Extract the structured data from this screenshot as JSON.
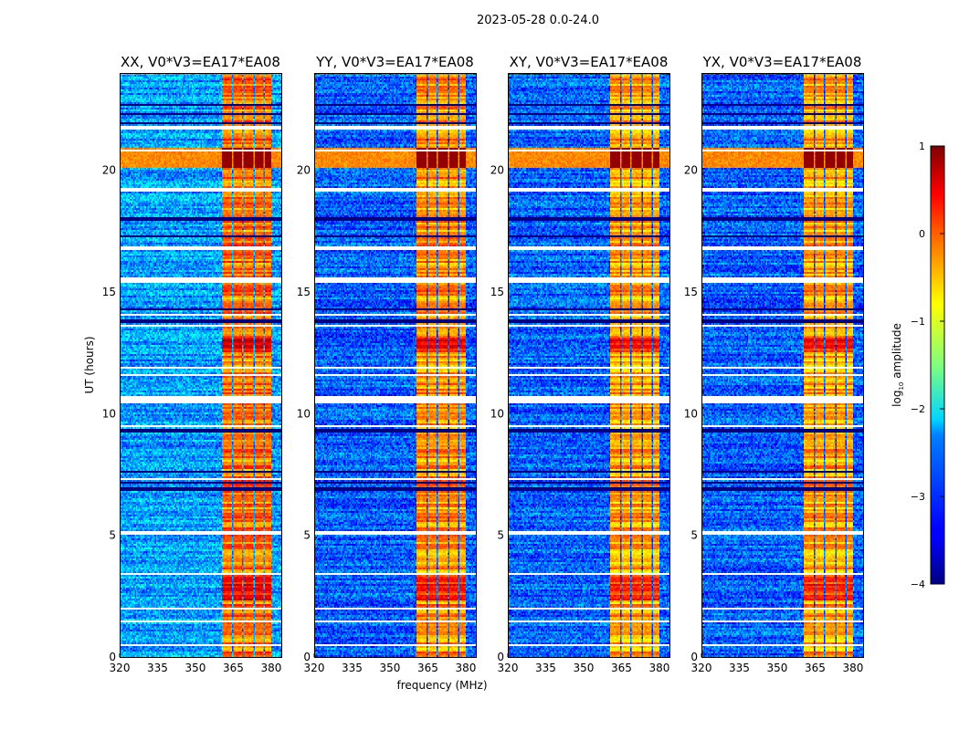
{
  "suptitle": "2023-05-28 0.0-24.0",
  "chart_data": {
    "type": "heatmap",
    "xlabel": "frequency (MHz)",
    "ylabel": "UT (hours)",
    "xlim": [
      320,
      384
    ],
    "ylim": [
      0,
      24
    ],
    "xticks": [
      320,
      335,
      350,
      365,
      380
    ],
    "yticks": [
      0,
      5,
      10,
      15,
      20
    ],
    "panels": [
      {
        "title": "XX, V0*V3=EA17*EA08",
        "base_level": -2.6,
        "rfi_gain": 0.25
      },
      {
        "title": "YY, V0*V3=EA17*EA08",
        "base_level": -2.9,
        "rfi_gain": 0.1
      },
      {
        "title": "XY, V0*V3=EA17*EA08",
        "base_level": -2.9,
        "rfi_gain": 0.0
      },
      {
        "title": "YX, V0*V3=EA17*EA08",
        "base_level": -2.9,
        "rfi_gain": 0.0
      }
    ],
    "rfi_bands_mhz": [
      [
        360.5,
        364.3
      ],
      [
        364.8,
        368.6
      ],
      [
        369.2,
        372.8
      ],
      [
        373.3,
        376.9
      ],
      [
        377.4,
        380.2
      ]
    ],
    "broadband_event_hours": [
      20.1,
      20.9
    ],
    "flagged_hours": [
      [
        21.65,
        21.8
      ],
      [
        20.75,
        20.85
      ],
      [
        19.15,
        19.25
      ],
      [
        16.75,
        16.85
      ],
      [
        15.35,
        15.6
      ],
      [
        14.05,
        14.12
      ],
      [
        13.55,
        13.62
      ],
      [
        11.85,
        11.95
      ],
      [
        11.55,
        11.65
      ],
      [
        10.45,
        10.7
      ],
      [
        9.45,
        9.52
      ],
      [
        7.25,
        7.32
      ],
      [
        5.05,
        5.2
      ],
      [
        4.25,
        4.3
      ],
      [
        3.35,
        3.42
      ],
      [
        1.95,
        2.02
      ],
      [
        1.45,
        1.52
      ],
      [
        0.45,
        0.52
      ]
    ],
    "dark_hours": [
      22.7,
      22.3,
      21.95,
      18.0,
      17.3,
      14.3,
      13.8,
      9.3,
      7.6,
      7.15,
      6.9
    ],
    "colorbar": {
      "label": "log10 amplitude",
      "label_main": "log",
      "label_sub": "10",
      "label_rest": " amplitude",
      "range": [
        -4,
        1
      ],
      "ticks": [
        1,
        0,
        -1,
        -2,
        -3,
        -4
      ],
      "tick_labels": [
        "1",
        "0",
        "−1",
        "−2",
        "−3",
        "−4"
      ]
    }
  }
}
